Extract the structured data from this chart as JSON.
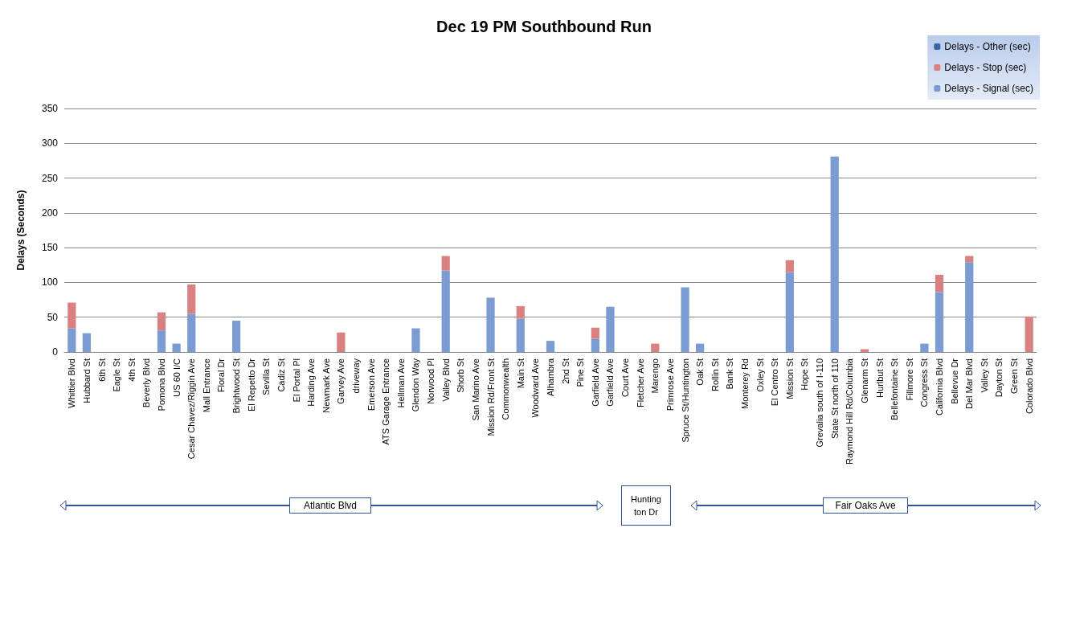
{
  "chart_data": {
    "type": "bar",
    "title": "Dec 19 PM Southbound Run",
    "ylabel": "Delays (Seconds)",
    "categories": [
      "Whittier Blvd",
      "Hubbard St",
      "6th St",
      "Eagle St",
      "4th St",
      "Beverly Blvd",
      "Pomona Blvd",
      "US 60 I/C",
      "Cesar Chavez/Riggin Ave",
      "Mall Entrance",
      "Floral Dr",
      "Brightwood St",
      "El Repetto Dr",
      "Sevilla St",
      "Cadiz St",
      "El Portal Pl",
      "Harding Ave",
      "Newmark Ave",
      "Garvey Ave",
      "driveway",
      "Emerson Ave",
      "ATS Garage Entrance",
      "Hellman Ave",
      "Glendon Way",
      "Norwood Pl",
      "Valley Blvd",
      "Shorb St",
      "San Marino Ave",
      "Mission Rd/Front St",
      "Commonwealth",
      "Main St",
      "Woodward Ave",
      "Alhambra",
      "2nd St",
      "Pine St",
      "Garfield Ave",
      "Garfield Ave",
      "Court Ave",
      "Fletcher Ave",
      "Marengo",
      "Primrose Ave",
      "Spruce St/Huntington",
      "Oak St",
      "Rollin St",
      "Bank St",
      "Monterey Rd",
      "Oxley St",
      "El Centro St",
      "Mission St",
      "Hope St",
      "Grevalia south of I-110",
      "State St north of 110",
      "Raymond Hill Rd/Columbia",
      "Glenarm St",
      "Hurlbut St",
      "Bellefontaine St",
      "Fillmore St",
      "Congress St",
      "California Blvd",
      "Bellevue Dr",
      "Del Mar Blvd",
      "Valley St",
      "Dayton St",
      "Green St",
      "Colorado Blvd"
    ],
    "series": [
      {
        "name": "Delays - Signal (sec)",
        "color": "#7b9bd2",
        "values": [
          34,
          27,
          0,
          0,
          0,
          0,
          31,
          12,
          55,
          0,
          0,
          45,
          0,
          0,
          0,
          0,
          0,
          0,
          0,
          0,
          0,
          0,
          0,
          34,
          0,
          117,
          0,
          0,
          78,
          0,
          48,
          0,
          16,
          0,
          0,
          19,
          65,
          0,
          0,
          0,
          0,
          93,
          12,
          0,
          0,
          0,
          0,
          0,
          115,
          0,
          0,
          281,
          0,
          0,
          0,
          0,
          0,
          12,
          86,
          0,
          129,
          0,
          0,
          0,
          0
        ]
      },
      {
        "name": "Delays - Stop (sec)",
        "color": "#d98080",
        "values": [
          37,
          0,
          0,
          0,
          0,
          0,
          26,
          0,
          42,
          0,
          0,
          0,
          0,
          0,
          0,
          0,
          0,
          0,
          28,
          0,
          0,
          0,
          0,
          0,
          0,
          21,
          0,
          0,
          0,
          0,
          18,
          0,
          0,
          0,
          0,
          16,
          0,
          0,
          0,
          12,
          0,
          0,
          0,
          0,
          0,
          0,
          0,
          0,
          17,
          0,
          0,
          0,
          0,
          4,
          0,
          0,
          0,
          0,
          25,
          0,
          9,
          0,
          0,
          0,
          51
        ]
      },
      {
        "name": "Delays - Other (sec)",
        "color": "#3c64a4",
        "values": [
          0,
          0,
          0,
          0,
          0,
          0,
          0,
          0,
          0,
          0,
          0,
          0,
          0,
          0,
          0,
          0,
          0,
          0,
          0,
          0,
          0,
          0,
          0,
          0,
          0,
          0,
          0,
          0,
          0,
          0,
          0,
          0,
          0,
          0,
          0,
          0,
          0,
          0,
          0,
          0,
          0,
          0,
          0,
          0,
          0,
          0,
          0,
          0,
          0,
          0,
          0,
          0,
          0,
          0,
          0,
          0,
          0,
          0,
          0,
          0,
          0,
          0,
          0,
          0,
          0
        ]
      }
    ],
    "stacked": true,
    "ylim": [
      0,
      350
    ],
    "yticks": [
      0,
      50,
      100,
      150,
      200,
      250,
      300,
      350
    ],
    "grid": "y",
    "legend": "top right",
    "annotations": [
      "Atlantic Blvd",
      "Huntington Dr",
      "Fair Oaks Ave"
    ]
  }
}
